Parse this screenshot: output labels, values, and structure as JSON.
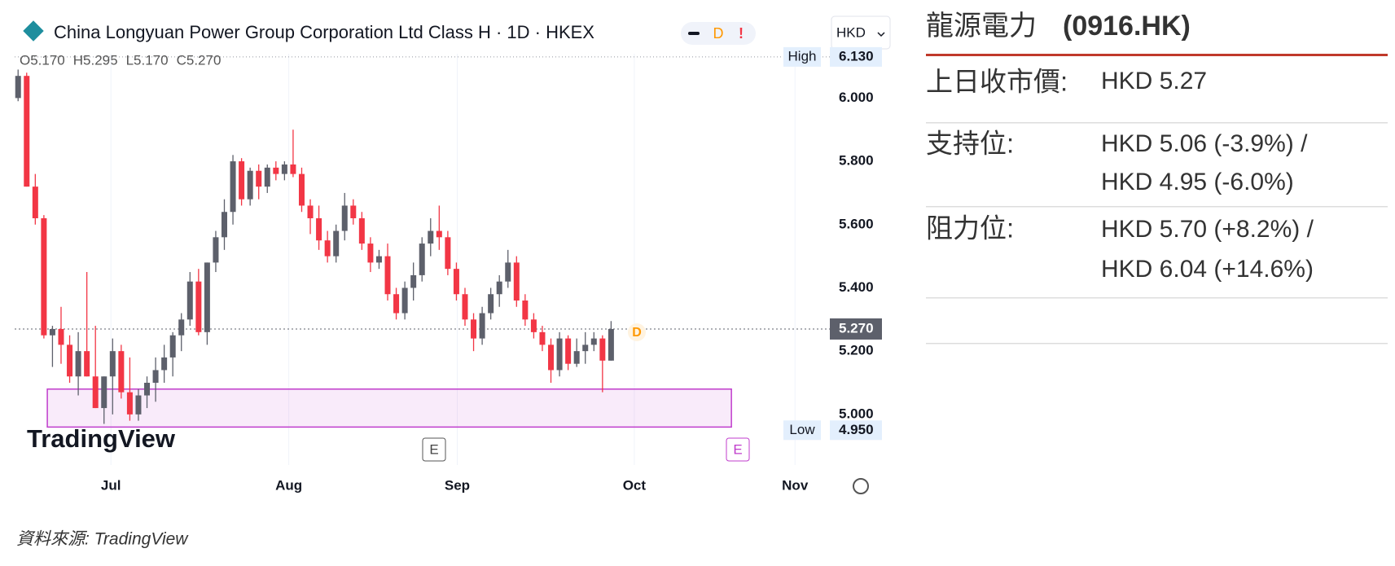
{
  "chart_data": {
    "type": "candlestick",
    "title": "China Longyuan Power Group Corporation Ltd Class H · 1D · HKEX",
    "ohlc_legend": [
      "O5.170",
      "H5.295",
      "L5.170",
      "C5.270"
    ],
    "currency": "HKD",
    "badges": [
      "D",
      "!"
    ],
    "logo": "TradingView",
    "event_marks": [
      "E",
      "E"
    ],
    "dividend_mark": "D",
    "categories": [
      null,
      null,
      null,
      null,
      null,
      null,
      null,
      null,
      null,
      null,
      null,
      null,
      null,
      null,
      null,
      null,
      null,
      null,
      null,
      null,
      null,
      null,
      null,
      null,
      null,
      null,
      null,
      null,
      null,
      null,
      null,
      null,
      null,
      null,
      null,
      null,
      null,
      null,
      null,
      null,
      null,
      null,
      null,
      null,
      null,
      null,
      null,
      null,
      null,
      null,
      null,
      null,
      null,
      null,
      null,
      null,
      null,
      null,
      null,
      null,
      null,
      null,
      null,
      null,
      null,
      null,
      null,
      null,
      null,
      null
    ],
    "open": [
      6.0,
      6.07,
      5.72,
      5.62,
      5.25,
      5.27,
      5.22,
      5.12,
      5.2,
      5.12,
      5.02,
      5.12,
      5.2,
      5.07,
      5.0,
      5.06,
      5.1,
      5.14,
      5.18,
      5.25,
      5.3,
      5.42,
      5.26,
      5.48,
      5.56,
      5.64,
      5.8,
      5.68,
      5.77,
      5.72,
      5.78,
      5.76,
      5.79,
      5.76,
      5.66,
      5.62,
      5.55,
      5.5,
      5.58,
      5.66,
      5.62,
      5.54,
      5.48,
      5.5,
      5.38,
      5.32,
      5.4,
      5.44,
      5.54,
      5.58,
      5.56,
      5.46,
      5.38,
      5.3,
      5.24,
      5.32,
      5.38,
      5.42,
      5.48,
      5.36,
      5.3,
      5.26,
      5.22,
      5.14,
      5.24,
      5.16,
      5.2,
      5.22,
      5.24,
      5.17
    ],
    "high": [
      6.09,
      6.08,
      5.76,
      5.63,
      5.28,
      5.34,
      5.25,
      5.26,
      5.45,
      5.28,
      5.12,
      5.24,
      5.22,
      5.18,
      5.08,
      5.12,
      5.18,
      5.22,
      5.26,
      5.32,
      5.45,
      5.46,
      5.48,
      5.58,
      5.68,
      5.82,
      5.81,
      5.78,
      5.79,
      5.79,
      5.8,
      5.8,
      5.9,
      5.78,
      5.68,
      5.66,
      5.58,
      5.6,
      5.7,
      5.68,
      5.64,
      5.56,
      5.52,
      5.54,
      5.4,
      5.42,
      5.48,
      5.56,
      5.62,
      5.66,
      5.58,
      5.48,
      5.4,
      5.32,
      5.34,
      5.4,
      5.44,
      5.52,
      5.5,
      5.38,
      5.32,
      5.28,
      5.24,
      5.26,
      5.25,
      5.24,
      5.26,
      5.26,
      5.25,
      5.295
    ],
    "low": [
      5.99,
      5.72,
      5.6,
      5.24,
      5.15,
      5.16,
      5.1,
      5.06,
      5.12,
      5.02,
      4.97,
      5.0,
      5.05,
      4.98,
      4.98,
      5.02,
      5.04,
      5.1,
      5.12,
      5.2,
      5.28,
      5.25,
      5.22,
      5.45,
      5.52,
      5.6,
      5.66,
      5.66,
      5.68,
      5.7,
      5.74,
      5.74,
      5.75,
      5.64,
      5.57,
      5.52,
      5.48,
      5.48,
      5.55,
      5.6,
      5.52,
      5.45,
      5.46,
      5.36,
      5.3,
      5.3,
      5.36,
      5.42,
      5.5,
      5.52,
      5.44,
      5.36,
      5.28,
      5.2,
      5.22,
      5.3,
      5.34,
      5.4,
      5.34,
      5.28,
      5.24,
      5.2,
      5.1,
      5.12,
      5.14,
      5.15,
      5.16,
      5.2,
      5.07,
      5.17
    ],
    "close": [
      6.07,
      5.72,
      5.62,
      5.25,
      5.27,
      5.22,
      5.12,
      5.2,
      5.12,
      5.02,
      5.12,
      5.2,
      5.07,
      5.0,
      5.06,
      5.1,
      5.14,
      5.18,
      5.25,
      5.3,
      5.42,
      5.26,
      5.48,
      5.56,
      5.64,
      5.8,
      5.68,
      5.77,
      5.72,
      5.78,
      5.76,
      5.79,
      5.76,
      5.66,
      5.62,
      5.55,
      5.5,
      5.58,
      5.66,
      5.62,
      5.54,
      5.48,
      5.5,
      5.38,
      5.32,
      5.4,
      5.44,
      5.54,
      5.58,
      5.56,
      5.46,
      5.38,
      5.3,
      5.24,
      5.32,
      5.38,
      5.42,
      5.48,
      5.36,
      5.3,
      5.26,
      5.22,
      5.14,
      5.24,
      5.16,
      5.2,
      5.22,
      5.24,
      5.17,
      5.27
    ],
    "up_color": "#5d606b",
    "down_color": "#f23645",
    "xlim": [
      -0.4,
      93.6
    ],
    "xticks": [
      {
        "value": 10.8,
        "label": "Jul"
      },
      {
        "value": 31.5,
        "label": "Aug"
      },
      {
        "value": 51.1,
        "label": "Sep"
      },
      {
        "value": 71.7,
        "label": "Oct"
      },
      {
        "value": 90.4,
        "label": "Nov"
      }
    ],
    "x_grid": true,
    "ylim": [
      4.84,
      6.14
    ],
    "yticks": [
      {
        "value": 5,
        "label": "5.000"
      },
      {
        "value": 5.2,
        "label": "5.200"
      },
      {
        "value": 5.4,
        "label": "5.400"
      },
      {
        "value": 5.6,
        "label": "5.600"
      },
      {
        "value": 5.8,
        "label": "5.800"
      },
      {
        "value": 6,
        "label": "6.000"
      }
    ],
    "high_marker": {
      "name": "High",
      "value": 6.13,
      "label": "6.130"
    },
    "low_marker": {
      "name": "Low",
      "value": 4.95,
      "label": "4.950"
    },
    "last_price": {
      "value": 5.27,
      "label": "5.270"
    },
    "zone": {
      "from": 4.96,
      "to": 5.08,
      "x_range": [
        3.4,
        83.0
      ],
      "color": "#c03ccc"
    }
  },
  "table": {
    "title": "龍源電力",
    "code": "(0916.HK)",
    "rows": [
      {
        "label": "上日收市價:",
        "lines": [
          "HKD 5.27"
        ]
      },
      {
        "label": "支持位:",
        "lines": [
          "HKD 5.06 (-3.9%) /",
          "HKD 4.95 (-6.0%)"
        ]
      },
      {
        "label": "阻力位:",
        "lines": [
          "HKD 5.70 (+8.2%) /",
          "HKD 6.04 (+14.6%)"
        ]
      }
    ]
  },
  "source": "資料來源: TradingView"
}
